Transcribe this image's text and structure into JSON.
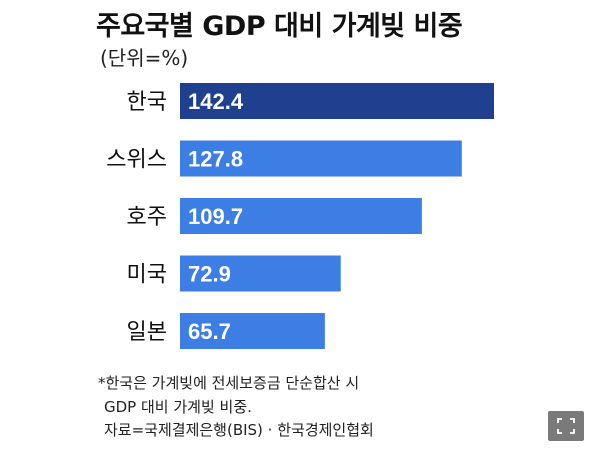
{
  "chart_data": {
    "type": "bar",
    "orientation": "horizontal",
    "title": "주요국별 GDP 대비 가계빚 비중",
    "subtitle": "(단위=%)",
    "categories": [
      "한국",
      "스위스",
      "호주",
      "미국",
      "일본"
    ],
    "values": [
      142.4,
      127.8,
      109.7,
      72.9,
      65.7
    ],
    "value_labels": [
      "142.4",
      "127.8",
      "109.7",
      "72.9",
      "65.7"
    ],
    "xlim": [
      0,
      142.4
    ],
    "grid": false,
    "legend": "none",
    "colors": {
      "highlight": "#1f3f8f",
      "default": "#3d7ee5",
      "label": "#ffffff"
    }
  },
  "notes": {
    "line1": "*한국은 가계빚에 전세보증금 단순합산 시",
    "line2": "GDP 대비 가계빚 비중.",
    "line3": "자료=국제결제은행(BIS) · 한국경제인협회"
  },
  "controls": {
    "fullscreen_icon": "fullscreen-icon"
  }
}
